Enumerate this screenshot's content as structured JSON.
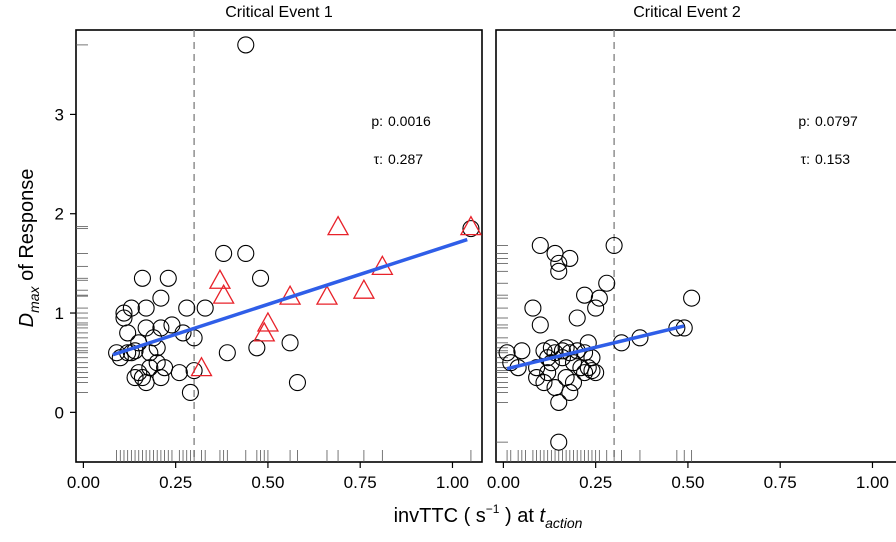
{
  "chart_data": {
    "type": "scatter",
    "xlabel": {
      "main": "invTTC ( s",
      "sup": "−1",
      "mid": ") at ",
      "italic": "t",
      "sub": "action"
    },
    "ylabel": {
      "italic": "D",
      "sub": "max",
      "main": " of Response"
    },
    "x_ticks": [
      "0.00",
      "0.25",
      "0.50",
      "0.75",
      "1.00"
    ],
    "x_tick_values": [
      0,
      0.25,
      0.5,
      0.75,
      1.0
    ],
    "y_ticks": [
      "0",
      "1",
      "2",
      "3"
    ],
    "y_tick_values": [
      0,
      1,
      2,
      3
    ],
    "xlim": [
      -0.02,
      1.08
    ],
    "ylim": [
      -0.5,
      3.85
    ],
    "grid": false,
    "colors": {
      "circle": "#000000",
      "triangle": "#e8222a",
      "fit": "#2f5ee8",
      "vline": "#888888"
    },
    "panels": [
      {
        "title": "Critical Event 1",
        "p_label": "p:",
        "p_value": "0.0016",
        "tau_label": "τ:",
        "tau_value": "0.287",
        "vline_x": 0.3,
        "fit": {
          "x": [
            0.08,
            1.04
          ],
          "y": [
            0.58,
            1.74
          ]
        },
        "circles": [
          [
            0.09,
            0.6
          ],
          [
            0.1,
            0.55
          ],
          [
            0.11,
            0.95
          ],
          [
            0.11,
            1.0
          ],
          [
            0.12,
            0.8
          ],
          [
            0.12,
            0.6
          ],
          [
            0.13,
            0.6
          ],
          [
            0.13,
            1.05
          ],
          [
            0.14,
            0.62
          ],
          [
            0.14,
            0.35
          ],
          [
            0.15,
            0.7
          ],
          [
            0.15,
            0.4
          ],
          [
            0.16,
            0.35
          ],
          [
            0.16,
            1.35
          ],
          [
            0.17,
            0.3
          ],
          [
            0.17,
            1.05
          ],
          [
            0.17,
            0.85
          ],
          [
            0.18,
            0.6
          ],
          [
            0.18,
            0.45
          ],
          [
            0.19,
            0.75
          ],
          [
            0.2,
            0.65
          ],
          [
            0.2,
            0.5
          ],
          [
            0.21,
            1.15
          ],
          [
            0.21,
            0.85
          ],
          [
            0.21,
            0.35
          ],
          [
            0.22,
            0.45
          ],
          [
            0.23,
            1.35
          ],
          [
            0.24,
            0.88
          ],
          [
            0.26,
            0.4
          ],
          [
            0.27,
            0.8
          ],
          [
            0.28,
            1.05
          ],
          [
            0.29,
            0.2
          ],
          [
            0.3,
            0.42
          ],
          [
            0.3,
            0.75
          ],
          [
            0.33,
            1.05
          ],
          [
            0.38,
            1.6
          ],
          [
            0.39,
            0.6
          ],
          [
            0.44,
            3.7
          ],
          [
            0.44,
            1.6
          ],
          [
            0.47,
            0.65
          ],
          [
            0.48,
            1.35
          ],
          [
            0.56,
            0.7
          ],
          [
            0.58,
            0.3
          ],
          [
            1.05,
            1.85
          ]
        ],
        "triangles": [
          [
            0.32,
            0.45
          ],
          [
            0.37,
            1.33
          ],
          [
            0.38,
            1.18
          ],
          [
            0.49,
            0.8
          ],
          [
            0.5,
            0.9
          ],
          [
            0.56,
            1.17
          ],
          [
            0.66,
            1.17
          ],
          [
            0.69,
            1.87
          ],
          [
            0.76,
            1.23
          ],
          [
            0.81,
            1.47
          ],
          [
            1.05,
            1.87
          ]
        ],
        "rug_x": [
          0.09,
          0.1,
          0.11,
          0.12,
          0.13,
          0.14,
          0.15,
          0.16,
          0.17,
          0.18,
          0.19,
          0.2,
          0.21,
          0.22,
          0.23,
          0.24,
          0.26,
          0.27,
          0.28,
          0.29,
          0.3,
          0.32,
          0.33,
          0.37,
          0.38,
          0.39,
          0.44,
          0.47,
          0.48,
          0.49,
          0.5,
          0.56,
          0.58,
          0.66,
          0.69,
          0.76,
          0.81,
          1.05
        ],
        "rug_y": [
          0.2,
          0.3,
          0.35,
          0.4,
          0.45,
          0.5,
          0.55,
          0.6,
          0.62,
          0.65,
          0.7,
          0.75,
          0.8,
          0.85,
          0.88,
          0.9,
          0.95,
          1.0,
          1.05,
          1.17,
          1.18,
          1.23,
          1.33,
          1.35,
          1.47,
          1.6,
          1.85,
          1.87,
          3.7
        ]
      },
      {
        "title": "Critical Event 2",
        "p_label": "p:",
        "p_value": "0.0797",
        "tau_label": "τ:",
        "tau_value": "0.153",
        "vline_x": 0.3,
        "fit": {
          "x": [
            0.01,
            0.49
          ],
          "y": [
            0.44,
            0.87
          ]
        },
        "circles": [
          [
            0.01,
            0.6
          ],
          [
            0.02,
            0.5
          ],
          [
            0.04,
            0.45
          ],
          [
            0.05,
            0.62
          ],
          [
            0.08,
            1.05
          ],
          [
            0.09,
            0.45
          ],
          [
            0.09,
            0.35
          ],
          [
            0.1,
            1.68
          ],
          [
            0.1,
            0.88
          ],
          [
            0.11,
            0.62
          ],
          [
            0.11,
            0.3
          ],
          [
            0.12,
            0.55
          ],
          [
            0.12,
            0.4
          ],
          [
            0.13,
            0.65
          ],
          [
            0.13,
            0.5
          ],
          [
            0.14,
            1.6
          ],
          [
            0.14,
            0.6
          ],
          [
            0.14,
            0.25
          ],
          [
            0.15,
            1.5
          ],
          [
            0.15,
            1.42
          ],
          [
            0.15,
            0.1
          ],
          [
            0.15,
            -0.3
          ],
          [
            0.16,
            0.62
          ],
          [
            0.16,
            0.55
          ],
          [
            0.17,
            0.65
          ],
          [
            0.17,
            0.35
          ],
          [
            0.18,
            1.55
          ],
          [
            0.18,
            0.6
          ],
          [
            0.18,
            0.2
          ],
          [
            0.19,
            0.5
          ],
          [
            0.19,
            0.3
          ],
          [
            0.2,
            0.95
          ],
          [
            0.2,
            0.62
          ],
          [
            0.21,
            0.45
          ],
          [
            0.22,
            1.18
          ],
          [
            0.22,
            0.4
          ],
          [
            0.22,
            0.6
          ],
          [
            0.23,
            0.7
          ],
          [
            0.23,
            0.45
          ],
          [
            0.24,
            0.55
          ],
          [
            0.24,
            0.42
          ],
          [
            0.25,
            1.05
          ],
          [
            0.25,
            0.4
          ],
          [
            0.26,
            1.15
          ],
          [
            0.28,
            1.3
          ],
          [
            0.3,
            1.68
          ],
          [
            0.32,
            0.7
          ],
          [
            0.37,
            0.75
          ],
          [
            0.47,
            0.85
          ],
          [
            0.49,
            0.85
          ],
          [
            0.51,
            1.15
          ]
        ],
        "triangles": [],
        "rug_x": [
          0.01,
          0.02,
          0.04,
          0.05,
          0.06,
          0.08,
          0.09,
          0.1,
          0.11,
          0.12,
          0.13,
          0.14,
          0.15,
          0.16,
          0.17,
          0.18,
          0.19,
          0.2,
          0.21,
          0.22,
          0.23,
          0.24,
          0.25,
          0.26,
          0.28,
          0.3,
          0.32,
          0.37,
          0.47,
          0.49,
          0.51
        ],
        "rug_y": [
          -0.3,
          0.1,
          0.2,
          0.25,
          0.3,
          0.35,
          0.4,
          0.42,
          0.45,
          0.5,
          0.55,
          0.6,
          0.62,
          0.65,
          0.7,
          0.75,
          0.85,
          0.88,
          0.95,
          1.05,
          1.15,
          1.18,
          1.3,
          1.42,
          1.5,
          1.55,
          1.6,
          1.68
        ]
      }
    ]
  }
}
